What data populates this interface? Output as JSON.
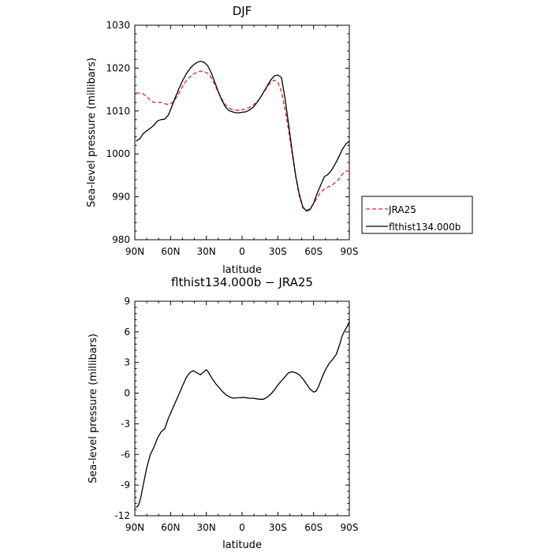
{
  "chart_data": [
    {
      "type": "line",
      "title": "DJF",
      "xlabel": "latitude",
      "ylabel": "Sea-level pressure (millibars)",
      "ylim": [
        980,
        1030
      ],
      "xlim": [
        90,
        -90
      ],
      "x_ticks": [
        "90N",
        "60N",
        "30N",
        "0",
        "30S",
        "60S",
        "90S"
      ],
      "y_ticks": [
        "980",
        "990",
        "1000",
        "1010",
        "1020",
        "1030"
      ],
      "grid": false,
      "legend_position": "right",
      "series": [
        {
          "name": "JRA25",
          "color": "#e8251f",
          "dash": "dashed",
          "x": [
            89,
            86,
            83,
            80,
            77,
            74,
            71,
            68,
            65,
            62,
            59,
            56,
            53,
            50,
            47,
            44,
            41,
            38,
            35,
            32,
            29,
            26,
            23,
            20,
            17,
            14,
            11,
            8,
            5,
            2,
            0,
            -3,
            -6,
            -9,
            -12,
            -15,
            -18,
            -21,
            -24,
            -27,
            -30,
            -33,
            -36,
            -39,
            -42,
            -45,
            -48,
            -51,
            -54,
            -57,
            -60,
            -63,
            -65,
            -67,
            -69,
            -72,
            -75,
            -78,
            -81,
            -84,
            -87,
            -90
          ],
          "y": [
            1014.2,
            1014.2,
            1014.0,
            1013.3,
            1012.5,
            1012.0,
            1012.0,
            1012.0,
            1011.7,
            1011.5,
            1011.8,
            1012.8,
            1014.2,
            1015.7,
            1017.0,
            1017.9,
            1018.6,
            1019.0,
            1019.3,
            1019.2,
            1018.8,
            1017.8,
            1016.2,
            1014.4,
            1012.8,
            1011.5,
            1010.7,
            1010.3,
            1010.2,
            1010.2,
            1010.3,
            1010.5,
            1010.8,
            1011.3,
            1012.0,
            1013.0,
            1014.3,
            1015.6,
            1016.7,
            1017.2,
            1016.8,
            1014.5,
            1010.5,
            1005.5,
            1000.0,
            994.6,
            990.2,
            987.4,
            986.8,
            987.3,
            988.4,
            989.8,
            990.7,
            991.3,
            991.8,
            992.3,
            992.6,
            993.3,
            994.0,
            995.2,
            996.0,
            996.0
          ]
        },
        {
          "name": "flthist134.000b",
          "color": "#000000",
          "dash": "solid",
          "x": [
            89,
            86,
            83,
            80,
            77,
            74,
            71,
            68,
            65,
            62,
            59,
            56,
            53,
            50,
            47,
            44,
            41,
            38,
            35,
            32,
            29,
            26,
            23,
            20,
            17,
            14,
            11,
            8,
            5,
            2,
            0,
            -3,
            -6,
            -9,
            -12,
            -15,
            -18,
            -21,
            -24,
            -27,
            -30,
            -33,
            -36,
            -39,
            -42,
            -45,
            -48,
            -51,
            -54,
            -57,
            -60,
            -63,
            -65,
            -67,
            -69,
            -72,
            -75,
            -78,
            -81,
            -84,
            -87,
            -90
          ],
          "y": [
            1003.0,
            1003.5,
            1004.7,
            1005.4,
            1006.0,
            1006.7,
            1007.7,
            1008.0,
            1008.1,
            1009.0,
            1011.0,
            1013.2,
            1015.2,
            1017.0,
            1018.6,
            1019.8,
            1020.7,
            1021.3,
            1021.6,
            1021.4,
            1020.6,
            1019.0,
            1016.8,
            1014.5,
            1012.5,
            1011.0,
            1010.1,
            1009.8,
            1009.6,
            1009.6,
            1009.7,
            1009.8,
            1010.2,
            1010.8,
            1011.8,
            1013.0,
            1014.4,
            1015.8,
            1017.2,
            1018.2,
            1018.4,
            1017.8,
            1013.0,
            1007.0,
            1000.6,
            994.9,
            990.6,
            987.6,
            986.7,
            987.0,
            988.5,
            990.8,
            992.1,
            993.4,
            994.7,
            995.2,
            996.2,
            997.6,
            999.2,
            1001.0,
            1002.3,
            1003.0
          ]
        }
      ]
    },
    {
      "type": "line",
      "title": "flthist134.000b − JRA25",
      "xlabel": "latitude",
      "ylabel": "Sea-level pressure (millibars)",
      "ylim": [
        -12,
        9
      ],
      "xlim": [
        90,
        -90
      ],
      "x_ticks": [
        "90N",
        "60N",
        "30N",
        "0",
        "30S",
        "60S",
        "90S"
      ],
      "y_ticks": [
        "-12",
        "-9",
        "-6",
        "-3",
        "0",
        "3",
        "6",
        "9"
      ],
      "grid": false,
      "series": [
        {
          "name": "",
          "color": "#000000",
          "dash": "solid",
          "x": [
            89,
            87,
            85,
            83,
            80,
            77,
            74,
            71,
            68,
            65,
            62,
            59,
            56,
            53,
            50,
            47,
            44,
            41,
            38,
            35,
            32,
            30,
            28,
            25,
            22,
            19,
            16,
            13,
            10,
            7,
            4,
            1,
            0,
            -3,
            -6,
            -9,
            -12,
            -15,
            -18,
            -21,
            -24,
            -27,
            -30,
            -33,
            -36,
            -39,
            -42,
            -45,
            -48,
            -51,
            -54,
            -57,
            -60,
            -62,
            -64,
            -66,
            -68,
            -70,
            -73,
            -76,
            -79,
            -82,
            -84,
            -86,
            -88,
            -90
          ],
          "y": [
            -11.2,
            -11.0,
            -10.2,
            -9.0,
            -7.3,
            -6.0,
            -5.3,
            -4.4,
            -3.8,
            -3.5,
            -2.5,
            -1.7,
            -0.9,
            -0.1,
            0.7,
            1.5,
            2.0,
            2.2,
            2.0,
            1.8,
            2.1,
            2.3,
            2.0,
            1.4,
            0.9,
            0.5,
            0.1,
            -0.2,
            -0.4,
            -0.5,
            -0.45,
            -0.45,
            -0.4,
            -0.45,
            -0.5,
            -0.5,
            -0.55,
            -0.6,
            -0.6,
            -0.4,
            -0.1,
            0.3,
            0.8,
            1.2,
            1.6,
            2.0,
            2.1,
            2.0,
            1.8,
            1.4,
            0.9,
            0.4,
            0.1,
            0.2,
            0.6,
            1.2,
            1.8,
            2.3,
            2.9,
            3.3,
            3.8,
            4.8,
            5.6,
            6.1,
            6.5,
            7.0
          ]
        }
      ]
    }
  ]
}
